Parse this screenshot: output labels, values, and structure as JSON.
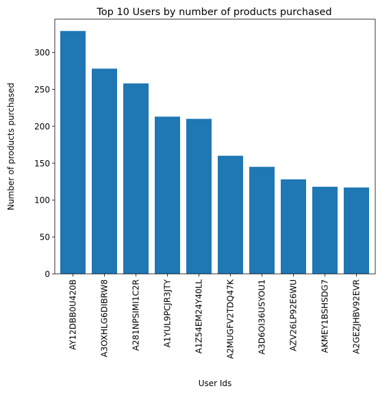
{
  "chart_data": {
    "type": "bar",
    "title": "Top 10 Users by number of products purchased",
    "xlabel": "User Ids",
    "ylabel": "Number of products purchased",
    "categories": [
      "AY12DBB0U420B",
      "A3OXHLG6DIBRW8",
      "A281NPSIMI1C2R",
      "A1YUL9PCJR3JTY",
      "A1Z54EM24Y40LL",
      "A2MUGFV2TDQ47K",
      "A3D6OI36USYOU1",
      "AZV26LP92E6WU",
      "AKMEY1BSHSDG7",
      "A2GEZJHBV92EVR"
    ],
    "values": [
      329,
      278,
      258,
      213,
      210,
      160,
      145,
      128,
      118,
      117
    ],
    "ylim": [
      0,
      345
    ],
    "yticks": [
      0,
      50,
      100,
      150,
      200,
      250,
      300
    ],
    "bar_color": "#1f77b4",
    "grid": false,
    "legend": "none"
  }
}
